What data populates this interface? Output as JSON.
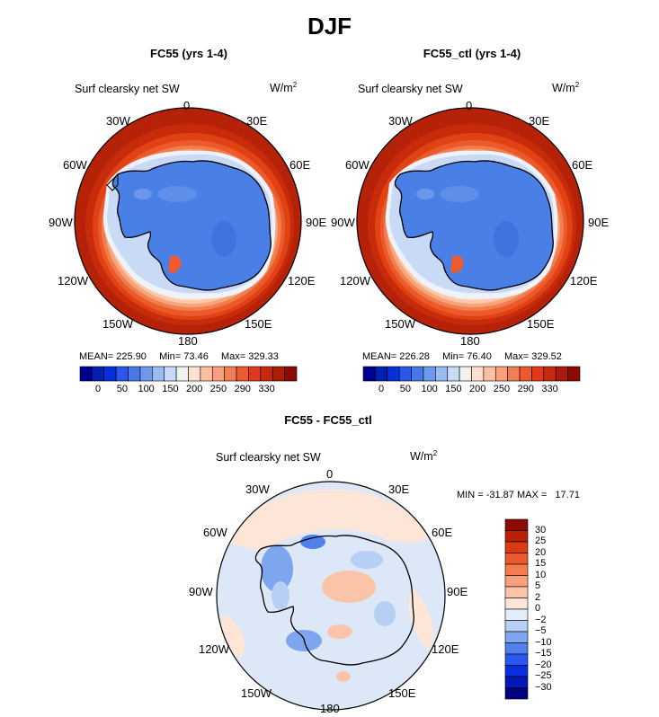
{
  "title": "DJF",
  "palette": {
    "land": "#4a7fe6",
    "coast": "#000000",
    "ocean_ring": [
      "#aa2000",
      "#c22808",
      "#d83c12",
      "#ea5a2a",
      "#f27e4e",
      "#f7a57c",
      "#fbc8a9",
      "#fde4d3",
      "#f0f4fb",
      "#c8daf6"
    ]
  },
  "panels": [
    {
      "title": "FC55 (yrs 1-4)",
      "variable": "Surf clearsky net SW",
      "units": "W/m",
      "units_exp": "2",
      "mean_label": "MEAN=",
      "mean": "225.90",
      "min_label": "Min=",
      "min": "73.46",
      "max_label": "Max=",
      "max": "329.33"
    },
    {
      "title": "FC55_ctl (yrs 1-4)",
      "variable": "Surf clearsky net SW",
      "units": "W/m",
      "units_exp": "2",
      "mean_label": "MEAN=",
      "mean": "226.28",
      "min_label": "Min=",
      "min": "76.40",
      "max_label": "Max=",
      "max": "329.52"
    }
  ],
  "diff": {
    "title": "FC55 - FC55_ctl",
    "variable": "Surf clearsky net SW",
    "units": "W/m",
    "units_exp": "2",
    "minmax": "MIN = -31.87 MAX =   17.71"
  },
  "lon_labels": {
    "n": "0",
    "e30": "30E",
    "e60": "60E",
    "e90": "90E",
    "e120": "120E",
    "e150": "150E",
    "s": "180",
    "w150": "150W",
    "w120": "120W",
    "w90": "90W",
    "w60": "60W",
    "w30": "30W"
  },
  "colorbar_abs": {
    "colors": [
      "#000090",
      "#0020b0",
      "#0830d8",
      "#2858e8",
      "#4878e8",
      "#6d98ee",
      "#9bbcf3",
      "#c7daf7",
      "#f0f0f0",
      "#fde0d0",
      "#fbc0a4",
      "#f8a07c",
      "#f47e54",
      "#ee5a30",
      "#e03818",
      "#c82810",
      "#aa1c08",
      "#880c04"
    ],
    "ticks": [
      "0",
      "50",
      "100",
      "150",
      "200",
      "250",
      "290",
      "330"
    ]
  },
  "colorbar_diff": {
    "colors": [
      "#000080",
      "#0018b8",
      "#0830e0",
      "#2858ee",
      "#5080ec",
      "#7ea6ee",
      "#b6cff5",
      "#e2ecfb",
      "#fde6d8",
      "#fbc4a8",
      "#f8a07c",
      "#f47c50",
      "#ec5a2c",
      "#da3a14",
      "#b82008",
      "#8c0c04"
    ],
    "ticks": [
      "30",
      "25",
      "20",
      "15",
      "10",
      "5",
      "2",
      "0",
      "−2",
      "−5",
      "−10",
      "−15",
      "−20",
      "−25",
      "−30"
    ]
  }
}
